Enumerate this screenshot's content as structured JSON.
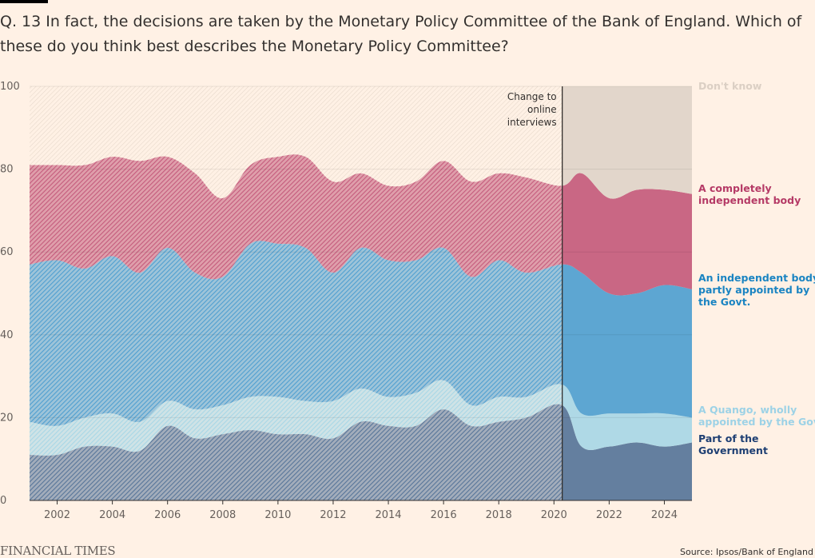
{
  "title": "Q. 13 In fact, the decisions are taken by the Monetary Policy Committee of the Bank of England. Which of these do you think best describes the Monetary Policy Committee?",
  "footer": {
    "brand": "FINANCIAL TIMES",
    "source": "Source: Ipsos/Bank of England"
  },
  "chart_data": {
    "type": "area",
    "stacked": true,
    "x": [
      2001,
      2002,
      2003,
      2004,
      2005,
      2006,
      2007,
      2008,
      2009,
      2010,
      2011,
      2012,
      2013,
      2014,
      2015,
      2016,
      2017,
      2018,
      2019,
      2020.3,
      2021,
      2022,
      2023,
      2024,
      2025
    ],
    "xlim": [
      2001,
      2025
    ],
    "ylim": [
      0,
      100
    ],
    "x_ticks": [
      2002,
      2004,
      2006,
      2008,
      2010,
      2012,
      2014,
      2016,
      2018,
      2020,
      2022,
      2024
    ],
    "y_ticks": [
      0,
      20,
      40,
      60,
      80,
      100
    ],
    "grid": true,
    "annotation": {
      "x": 2020.3,
      "lines": [
        "Change to",
        "online",
        "interviews"
      ]
    },
    "series": [
      {
        "name": "Part of the Government",
        "label_lines": [
          "Part of the",
          "Government"
        ],
        "color": "#577599",
        "label_color": "#1e3f73",
        "values": [
          11,
          11,
          13,
          13,
          12,
          18,
          15,
          16,
          17,
          16,
          16,
          15,
          19,
          18,
          18,
          22,
          18,
          19,
          20,
          23,
          13,
          13,
          14,
          13,
          14
        ]
      },
      {
        "name": "A Quango, wholly appointed by the Govt.",
        "label_lines": [
          "A Quango, wholly",
          "appointed by the Govt."
        ],
        "color": "#a8d7e6",
        "label_color": "#9dd2e6",
        "values": [
          8,
          7,
          7,
          8,
          7,
          6,
          7,
          7,
          8,
          9,
          8,
          9,
          8,
          7,
          8,
          7,
          5,
          6,
          5,
          5,
          8,
          8,
          7,
          8,
          6
        ]
      },
      {
        "name": "An independent body, partly appointed by the Govt.",
        "label_lines": [
          "An independent body,",
          "partly appointed by",
          "the Govt."
        ],
        "color": "#4f9fd0",
        "label_color": "#1a84c2",
        "values": [
          38,
          40,
          36,
          38,
          36,
          37,
          33,
          31,
          37,
          37,
          37,
          31,
          34,
          33,
          32,
          32,
          31,
          33,
          30,
          29,
          34,
          29,
          29,
          31,
          31
        ]
      },
      {
        "name": "A completely independent body",
        "label_lines": [
          "A completely",
          "independent body"
        ],
        "color": "#c45b7c",
        "label_color": "#b53a66",
        "values": [
          24,
          23,
          25,
          24,
          27,
          22,
          24,
          19,
          19,
          21,
          22,
          22,
          18,
          18,
          19,
          21,
          23,
          21,
          23,
          19,
          24,
          23,
          25,
          23,
          23
        ]
      },
      {
        "name": "Don't know",
        "label_lines": [
          "Don't know"
        ],
        "color": "#e2d6cb",
        "label_color": "#dbcfc4",
        "values": [
          19,
          19,
          19,
          17,
          18,
          17,
          21,
          27,
          19,
          17,
          17,
          23,
          21,
          24,
          23,
          18,
          23,
          21,
          22,
          24,
          21,
          27,
          25,
          25,
          26
        ]
      }
    ]
  }
}
